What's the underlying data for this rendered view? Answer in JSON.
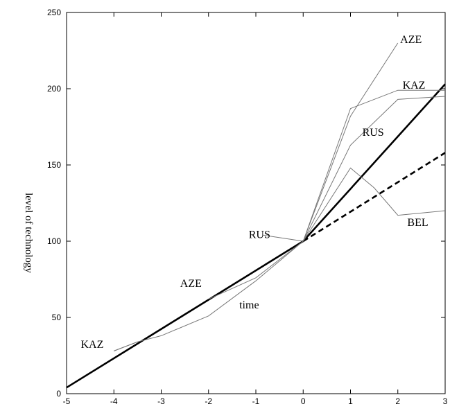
{
  "chart_data": {
    "type": "line",
    "title": "",
    "xlabel": "",
    "ylabel": "level of technology",
    "xlim": [
      -5,
      3
    ],
    "ylim": [
      0,
      250
    ],
    "xticks": [
      "-5",
      "-4",
      "-3",
      "-2",
      "-1",
      "0",
      "1",
      "2",
      "3"
    ],
    "yticks": [
      "0",
      "50",
      "100",
      "150",
      "200",
      "250"
    ],
    "grid": false,
    "series": [
      {
        "style": "thick",
        "x": [
          -5,
          0,
          3
        ],
        "y": [
          4,
          100,
          203
        ]
      },
      {
        "style": "dashed",
        "x": [
          0,
          3
        ],
        "y": [
          100,
          158
        ]
      },
      {
        "style": "thin",
        "x": [
          -4,
          -3.5,
          -3,
          -2,
          -1,
          0,
          1,
          2,
          3
        ],
        "y": [
          28,
          34,
          38,
          51,
          74,
          100,
          187,
          199,
          199
        ]
      },
      {
        "style": "thin",
        "x": [
          -2,
          -1,
          0,
          1,
          2
        ],
        "y": [
          62,
          76,
          100,
          182,
          230
        ]
      },
      {
        "style": "thin",
        "x": [
          0,
          1,
          2,
          3
        ],
        "y": [
          100,
          163,
          193,
          195
        ]
      },
      {
        "style": "thin",
        "x": [
          0,
          1,
          1.5,
          2,
          3
        ],
        "y": [
          100,
          148,
          135,
          117,
          120
        ]
      }
    ],
    "annotations": [
      {
        "text": "AZE",
        "x": 2.05,
        "y": 230,
        "line": [
          [
            1.9,
            222
          ],
          [
            1.9,
            222
          ]
        ]
      },
      {
        "text": "KAZ",
        "x": 2.1,
        "y": 200,
        "line": [
          [
            2,
            199
          ],
          [
            2,
            199
          ]
        ]
      },
      {
        "text": "RUS",
        "x": 1.25,
        "y": 169,
        "line": [
          [
            1.2,
            164
          ],
          [
            1.2,
            164
          ]
        ]
      },
      {
        "text": "BEL",
        "x": 2.2,
        "y": 110,
        "line": [
          [
            2,
            117
          ],
          [
            2,
            117
          ]
        ]
      },
      {
        "text": "RUS",
        "x": -1.15,
        "y": 102,
        "line": [
          [
            -0.85,
            104
          ],
          [
            0,
            100
          ]
        ]
      },
      {
        "text": "AZE",
        "x": -2.6,
        "y": 70,
        "line": [
          [
            -2.05,
            61
          ],
          [
            -2.05,
            61
          ]
        ]
      },
      {
        "text": "time",
        "x": -1.35,
        "y": 56,
        "line": null
      },
      {
        "text": "KAZ",
        "x": -4.7,
        "y": 30,
        "line": [
          [
            -4,
            28
          ],
          [
            -3.5,
            34
          ]
        ]
      }
    ]
  }
}
